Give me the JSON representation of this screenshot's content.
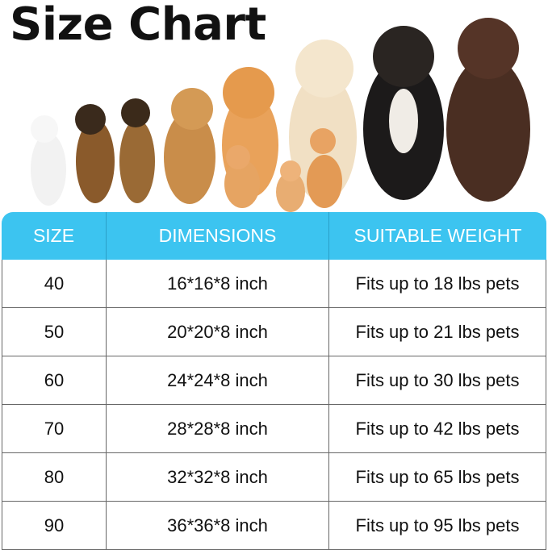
{
  "title": "Size Chart",
  "image": {
    "subject": "dogs-and-cats-photo"
  },
  "table": {
    "headers": [
      "SIZE",
      "DIMENSIONS",
      "SUITABLE WEIGHT"
    ],
    "rows": [
      [
        "40",
        "16*16*8 inch",
        "Fits up to 18 lbs pets"
      ],
      [
        "50",
        "20*20*8 inch",
        "Fits up to 21 lbs pets"
      ],
      [
        "60",
        "24*24*8 inch",
        "Fits up to 30 lbs pets"
      ],
      [
        "70",
        "28*28*8 inch",
        "Fits up to 42 lbs pets"
      ],
      [
        "80",
        "32*32*8 inch",
        "Fits up to 65 lbs pets"
      ],
      [
        "90",
        "36*36*8 inch",
        "Fits up to 95 lbs pets"
      ]
    ]
  },
  "colors": {
    "header_bg": "#3cc4f0",
    "header_text": "#ffffff"
  }
}
